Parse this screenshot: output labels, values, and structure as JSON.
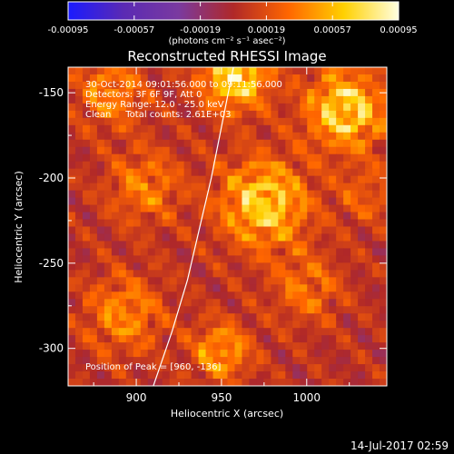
{
  "chart_data": {
    "type": "heatmap",
    "title": "Reconstructed RHESSI Image",
    "xlabel": "Heliocentric X (arcsec)",
    "ylabel": "Heliocentric Y (arcsec)",
    "xlim": [
      860,
      1047
    ],
    "ylim": [
      -322,
      -135
    ],
    "x_ticks": [
      900,
      950,
      1000
    ],
    "y_ticks": [
      -150,
      -200,
      -250,
      -300
    ],
    "colorbar": {
      "min": -0.00095,
      "max": 0.00095,
      "ticks": [
        "-0.00095",
        "-0.00057",
        "-0.00019",
        "0.00019",
        "0.00057",
        "0.00095"
      ],
      "unit_label": "(photons cm⁻² s⁻¹ asec⁻²)",
      "colors": [
        "#1a1aff",
        "#5a2ab4",
        "#7a3aa0",
        "#b02828",
        "#ff6600",
        "#ffd000",
        "#ffffe0"
      ]
    },
    "annotations": [
      "30-Oct-2014 09:01:56.000 to 09:11:56.000",
      "Detectors: 3F 6F 9F, Att 0",
      "Energy Range: 12.0 - 25.0 keV",
      "Clean     Total counts: 2.61E+03",
      "Position of Peak = [960, -136]"
    ],
    "peak_position": [
      960,
      -136
    ],
    "limb_curve": {
      "color": "#ffffff",
      "points": [
        [
          910,
          -322
        ],
        [
          921,
          -290
        ],
        [
          930,
          -260
        ],
        [
          937,
          -230
        ],
        [
          944,
          -200
        ],
        [
          950,
          -170
        ],
        [
          955,
          -145
        ],
        [
          957,
          -135
        ]
      ]
    },
    "bright_sources": [
      {
        "x": 958,
        "y": -140,
        "amplitude": 0.00095,
        "radius": 14
      },
      {
        "x": 1023,
        "y": -160,
        "amplitude": 0.0009,
        "radius": 16
      },
      {
        "x": 975,
        "y": -215,
        "amplitude": 0.00085,
        "radius": 18
      },
      {
        "x": 885,
        "y": -150,
        "amplitude": 0.0005,
        "radius": 14
      },
      {
        "x": 905,
        "y": -205,
        "amplitude": 0.00045,
        "radius": 15
      },
      {
        "x": 893,
        "y": -280,
        "amplitude": 0.0005,
        "radius": 16
      },
      {
        "x": 950,
        "y": -302,
        "amplitude": 0.0006,
        "radius": 12
      },
      {
        "x": 1000,
        "y": -265,
        "amplitude": 0.0004,
        "radius": 14
      },
      {
        "x": 1035,
        "y": -210,
        "amplitude": 0.0003,
        "radius": 12
      }
    ]
  },
  "footer_date": "14-Jul-2017 02:59"
}
